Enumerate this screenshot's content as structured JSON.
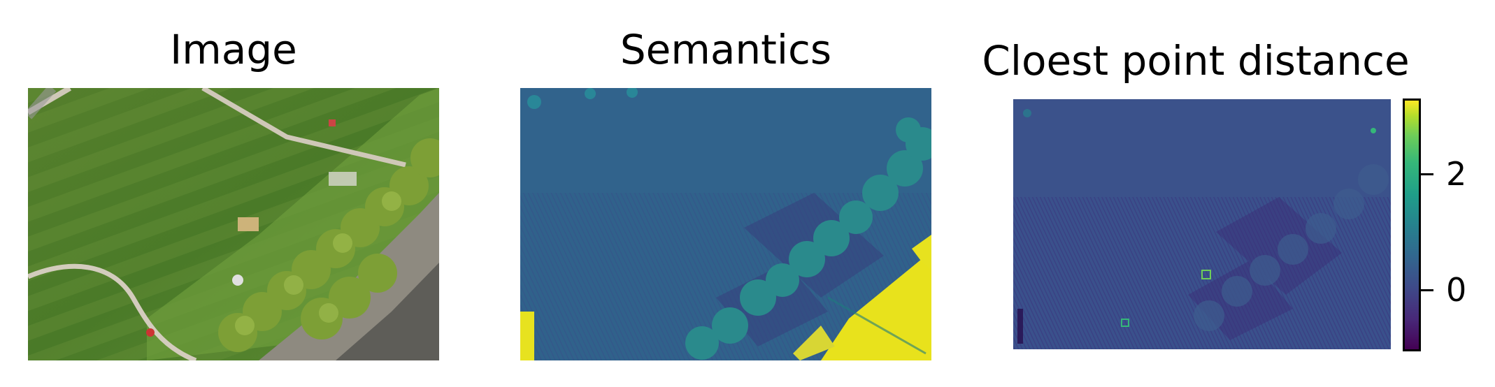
{
  "panels": [
    {
      "id": "image",
      "title": "Image",
      "content": "aerial photo of grass field with path and row of trees"
    },
    {
      "id": "semantics",
      "title": "Semantics",
      "content": "semantic segmentation map"
    },
    {
      "id": "distance",
      "title": "Cloest point distance",
      "content": "closest point distance heatmap"
    }
  ],
  "colorbar": {
    "colormap": "viridis",
    "ticks": [
      "2",
      "0"
    ]
  },
  "colors": {
    "grass": "#4f7a2a",
    "path": "#c9c3b5",
    "trees": "#7a9a35",
    "sem_bg": "#30628b",
    "sem_tree": "#2b8c8c",
    "sem_building": "#e6df1f",
    "dist_bg": "#3a4f8c",
    "dist_dark": "#3a2a78"
  }
}
